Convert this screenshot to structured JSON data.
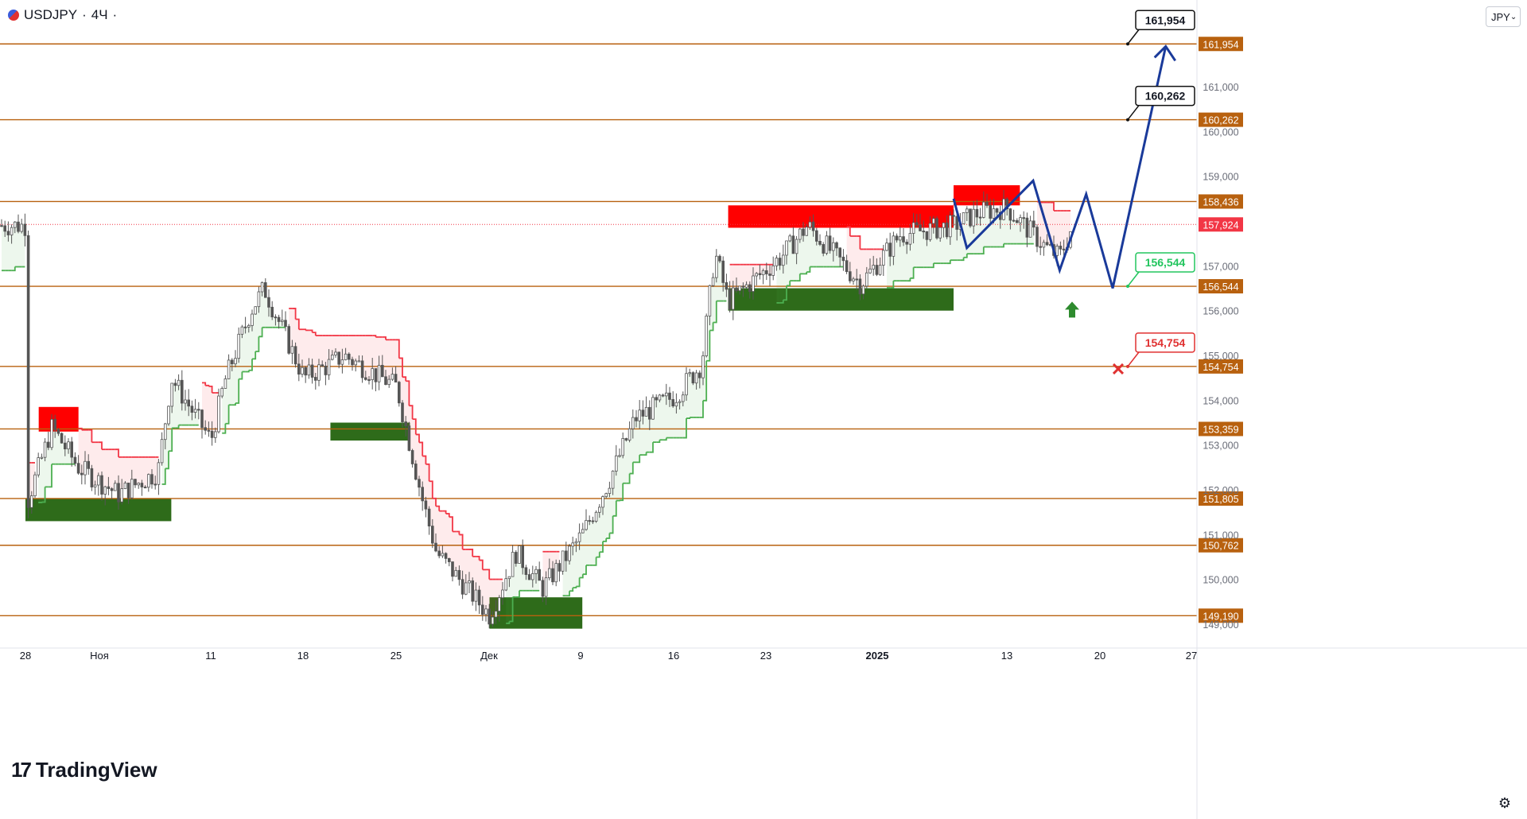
{
  "header": {
    "symbol": "USDJPY",
    "interval": "4Ч",
    "currency_button": "JPY",
    "currency_chevron": "⌄",
    "brand": "TradingView",
    "settings_icon": "gear-icon"
  },
  "colors": {
    "level_line": "#b8610f",
    "candle": "#555555",
    "bull_zone": "#2e6b1a",
    "bear_zone": "#ff0000",
    "stop_red": "#f23645",
    "stop_green": "#4caf50",
    "forecast": "#1a3a9a",
    "current_price": "#f23645",
    "callout_green": "#22c55e",
    "callout_red": "#e03131"
  },
  "chart_data": {
    "type": "candlestick",
    "title": "USDJPY · 4Ч",
    "y_range": [
      148.6,
      162.8
    ],
    "y_ticks": [
      "161,000",
      "160,000",
      "159,000",
      "157,000",
      "156,000",
      "155,000",
      "154,000",
      "153,000",
      "152,000",
      "151,000",
      "150,000",
      "149,000"
    ],
    "x_ticks": [
      "28",
      "Ноя",
      "11",
      "18",
      "25",
      "Дек",
      "9",
      "16",
      "23",
      "2025",
      "13",
      "20",
      "27"
    ],
    "levels": [
      161.954,
      160.262,
      158.436,
      156.544,
      154.754,
      153.359,
      151.805,
      150.762,
      149.19
    ],
    "level_labels": [
      "161,954",
      "160,262",
      "158,436",
      "156,544",
      "154,754",
      "153,359",
      "151,805",
      "150,762",
      "149,190"
    ],
    "current_price": 157.924,
    "current_price_label": "157,924",
    "callouts": [
      {
        "label": "161,954",
        "value": 161.954,
        "style": "dark"
      },
      {
        "label": "160,262",
        "value": 160.262,
        "style": "dark"
      },
      {
        "label": "156,544",
        "value": 156.544,
        "style": "green"
      },
      {
        "label": "154,754",
        "value": 154.754,
        "style": "red"
      }
    ],
    "price_path": [
      [
        "Oct-28",
        151.6
      ],
      [
        "Oct-30",
        153.4
      ],
      [
        "Nov-01",
        152.5
      ],
      [
        "Nov-04",
        151.9
      ],
      [
        "Nov-07",
        152.4
      ],
      [
        "Nov-08",
        154.5
      ],
      [
        "Nov-11",
        153.1
      ],
      [
        "Nov-12",
        154.4
      ],
      [
        "Nov-14",
        156.0
      ],
      [
        "Nov-15",
        156.5
      ],
      [
        "Nov-18",
        154.5
      ],
      [
        "Nov-20",
        154.8
      ],
      [
        "Nov-21",
        155.0
      ],
      [
        "Nov-25",
        154.3
      ],
      [
        "Nov-27",
        151.7
      ],
      [
        "Nov-28",
        150.6
      ],
      [
        "Dec-02",
        149.2
      ],
      [
        "Dec-04",
        150.6
      ],
      [
        "Dec-06",
        149.8
      ],
      [
        "Dec-09",
        151.0
      ],
      [
        "Dec-11",
        152.2
      ],
      [
        "Dec-13",
        153.6
      ],
      [
        "Dec-16",
        154.1
      ],
      [
        "Dec-18",
        154.8
      ],
      [
        "Dec-19",
        157.3
      ],
      [
        "Dec-20",
        156.2
      ],
      [
        "Dec-24",
        157.2
      ],
      [
        "Dec-26",
        157.9
      ],
      [
        "Dec-30",
        156.6
      ],
      [
        "Jan-02",
        157.7
      ],
      [
        "Jan-06",
        157.9
      ],
      [
        "Jan-08",
        158.2
      ],
      [
        "Jan-10",
        158.3
      ],
      [
        "Jan-13",
        157.4
      ],
      [
        "Jan-14",
        157.2
      ],
      [
        "Jan-15",
        157.9
      ]
    ],
    "forecast_path": [
      [
        "Jan-06",
        158.5
      ],
      [
        "Jan-07",
        157.4
      ],
      [
        "Jan-12",
        158.9
      ],
      [
        "Jan-14",
        156.9
      ],
      [
        "Jan-16",
        158.6
      ],
      [
        "Jan-18",
        156.5
      ],
      [
        "Jan-22",
        161.9
      ]
    ],
    "zones": [
      {
        "kind": "demand",
        "from": "Oct-28",
        "to": "Nov-08",
        "low": 151.3,
        "high": 151.8
      },
      {
        "kind": "supply",
        "from": "Oct-29",
        "to": "Nov-01",
        "low": 153.3,
        "high": 153.85
      },
      {
        "kind": "demand",
        "from": "Nov-20",
        "to": "Nov-26",
        "low": 153.1,
        "high": 153.5
      },
      {
        "kind": "demand",
        "from": "Dec-02",
        "to": "Dec-09",
        "low": 148.9,
        "high": 149.6
      },
      {
        "kind": "supply",
        "from": "Dec-20",
        "to": "Jan-06",
        "low": 157.85,
        "high": 158.35
      },
      {
        "kind": "demand",
        "from": "Dec-20",
        "to": "Jan-06",
        "low": 156.0,
        "high": 156.5
      },
      {
        "kind": "supply",
        "from": "Jan-06",
        "to": "Jan-11",
        "low": 158.35,
        "high": 158.8
      }
    ],
    "target_arrow_value": 156.2,
    "invalidation_value": 154.7
  }
}
